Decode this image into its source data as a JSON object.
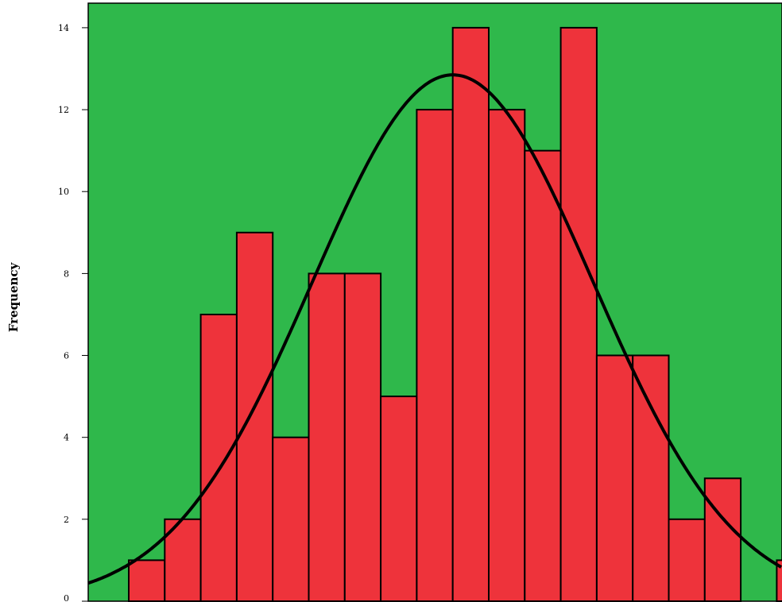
{
  "chart_data": {
    "type": "bar",
    "title": "",
    "xlabel": "",
    "ylabel": "Frequency",
    "ylim": [
      0,
      14.6
    ],
    "yticks": [
      0,
      2,
      4,
      6,
      8,
      10,
      12,
      14
    ],
    "bin_count": 19,
    "values": [
      1,
      2,
      7,
      9,
      4,
      8,
      8,
      5,
      12,
      14,
      12,
      11,
      14,
      6,
      6,
      2,
      3,
      0,
      1
    ],
    "normal_curve": {
      "mean_bin": 9.0,
      "sd_bins": 3.9,
      "peak": 12.85
    },
    "grid": false,
    "legend": "none",
    "colors": {
      "plot_background": "#2fb84b",
      "bar_fill": "#ee333b",
      "bar_stroke": "#000000",
      "curve": "#000000"
    }
  }
}
